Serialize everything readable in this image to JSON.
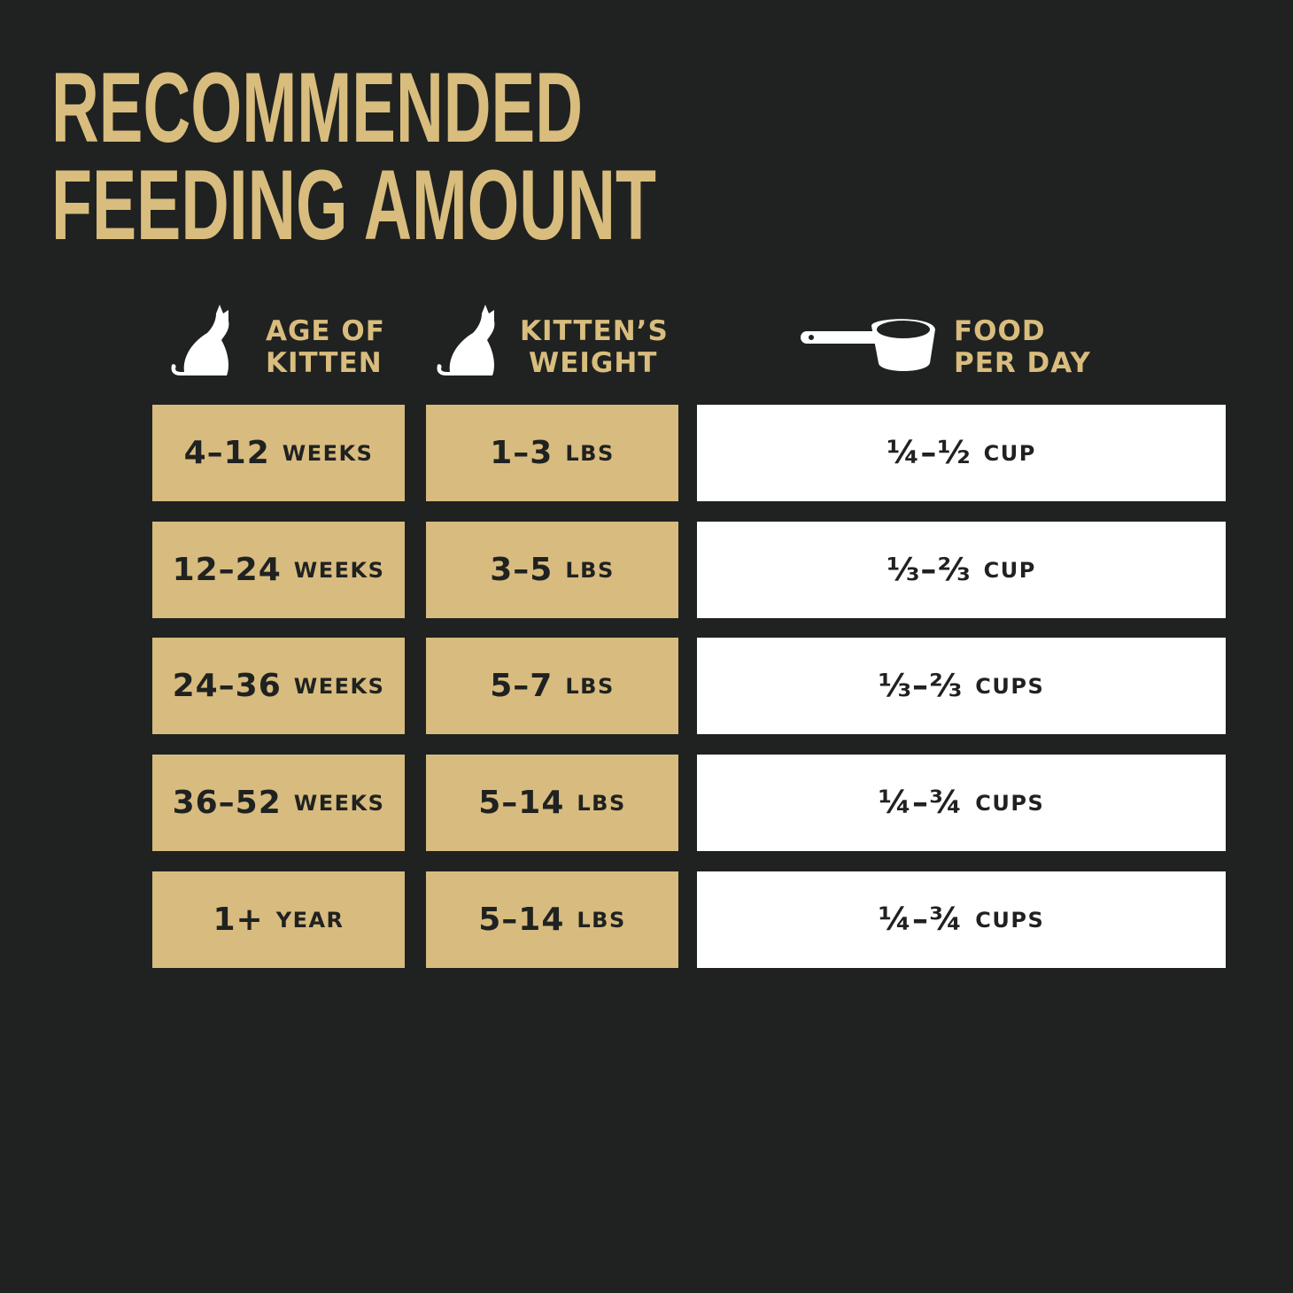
{
  "header": {
    "title": [
      "RECOMMENDED",
      "FEEDING AMOUNT"
    ]
  },
  "table": {
    "columns": [
      [
        "AGE OF",
        "KITTEN"
      ],
      [
        "KITTEN’S",
        "WEIGHT"
      ],
      [
        "FOOD",
        "PER DAY"
      ]
    ],
    "rows": [
      [
        {
          "main": "4–12",
          "unit": "WEEKS"
        },
        {
          "main": "1–3",
          "unit": "LBS"
        },
        {
          "main": "¼–½",
          "unit": "CUP"
        }
      ],
      [
        {
          "main": "12–24",
          "unit": "WEEKS"
        },
        {
          "main": "3–5",
          "unit": "LBS"
        },
        {
          "main": "⅓–⅔",
          "unit": "CUP"
        }
      ],
      [
        {
          "main": "24–36",
          "unit": "WEEKS"
        },
        {
          "main": "5–7",
          "unit": "LBS"
        },
        {
          "main": "⅓–⅔",
          "unit": "CUPS"
        }
      ],
      [
        {
          "main": "36–52",
          "unit": "WEEKS"
        },
        {
          "main": "5–14",
          "unit": "LBS"
        },
        {
          "main": "¼–¾",
          "unit": "CUPS"
        }
      ],
      [
        {
          "main": "1+",
          "unit": "YEAR"
        },
        {
          "main": "5–14",
          "unit": "LBS"
        },
        {
          "main": "¼–¾",
          "unit": "CUPS"
        }
      ]
    ]
  }
}
